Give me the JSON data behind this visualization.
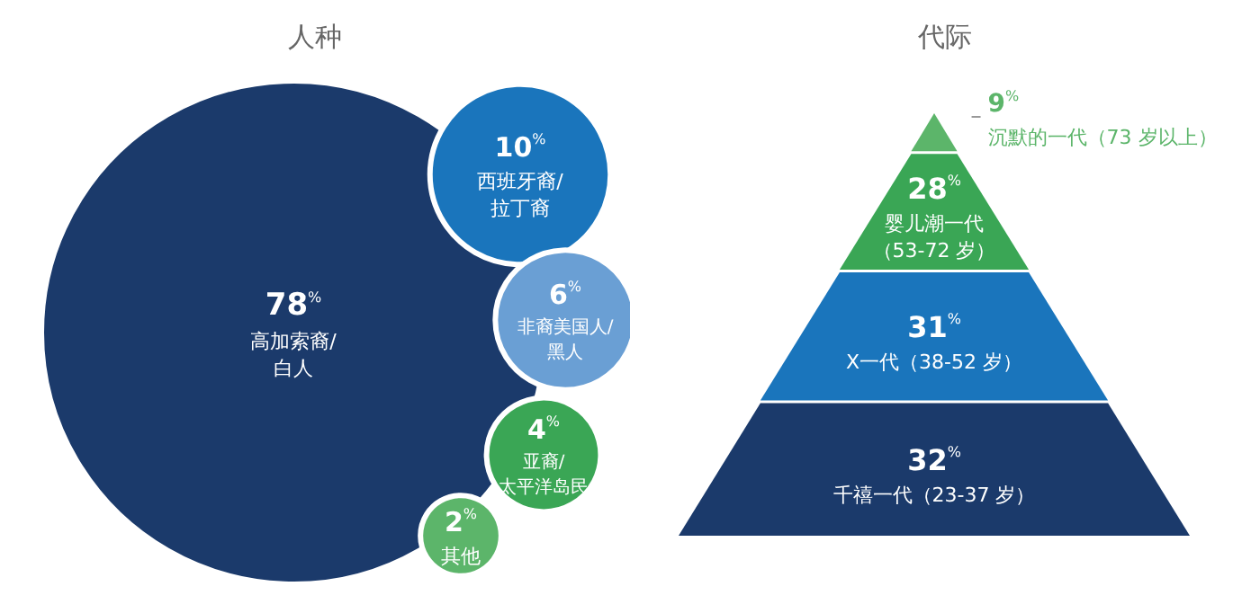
{
  "chart_data": [
    {
      "type": "other",
      "title": "人种",
      "categories": [
        "高加索裔/白人",
        "西班牙裔/拉丁裔",
        "非裔美国人/黑人",
        "亚裔/太平洋岛民",
        "其他"
      ],
      "values": [
        78,
        10,
        6,
        4,
        2
      ],
      "value_labels": [
        "78%",
        "10%",
        "6%",
        "4%",
        "2%"
      ],
      "colors": [
        "#1b3a6b",
        "#1a75bc",
        "#6a9fd4",
        "#3aa655",
        "#5cb56a"
      ]
    },
    {
      "type": "other",
      "title": "代际",
      "categories": [
        "沉默的一代（73 岁以上）",
        "婴儿潮一代（53-72 岁）",
        "X一代（38-52 岁）",
        "千禧一代（23-37 岁）"
      ],
      "values": [
        9,
        28,
        31,
        32
      ],
      "value_labels": [
        "9%",
        "28%",
        "31%",
        "32%"
      ],
      "colors": [
        "#5cb56a",
        "#3aa655",
        "#1a75bc",
        "#1b3a6b"
      ]
    }
  ]
}
